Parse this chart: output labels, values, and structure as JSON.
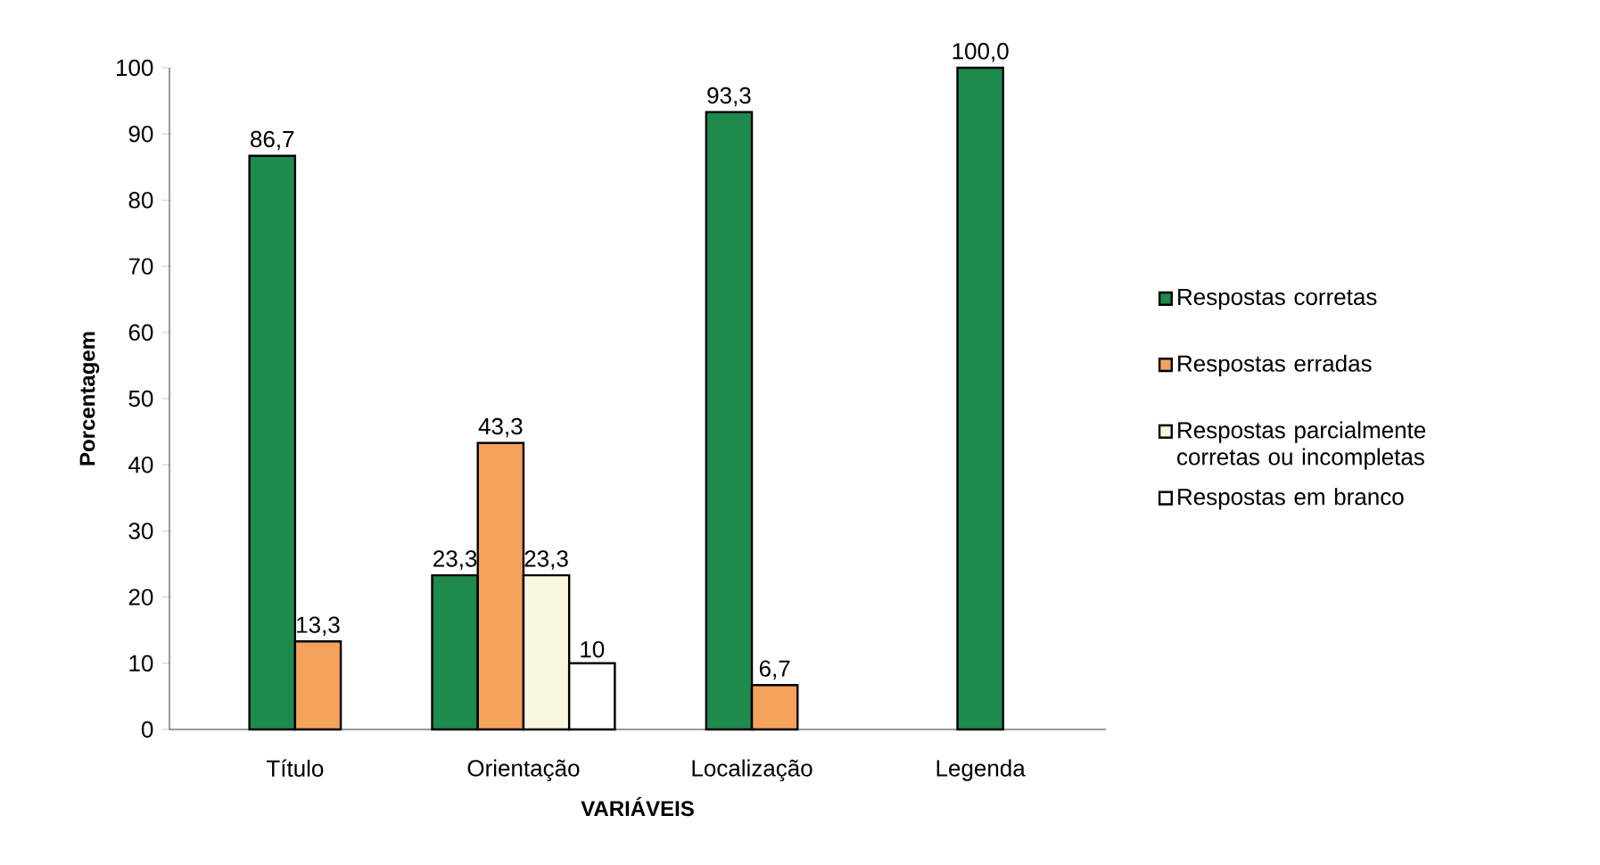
{
  "chart_data": {
    "type": "bar",
    "categories": [
      "Título",
      "Orientação",
      "Localização",
      "Legenda"
    ],
    "xlabel": "VARIÁVEIS",
    "ylabel": "Porcentagem",
    "ylim": [
      0,
      100
    ],
    "yticks": [
      0,
      10,
      20,
      30,
      40,
      50,
      60,
      70,
      80,
      90,
      100
    ],
    "legend": "right",
    "series": [
      {
        "name": "Respostas corretas",
        "color": "#1e8a4c",
        "values": [
          86.7,
          23.3,
          93.3,
          100.0
        ],
        "value_labels": [
          "86,7",
          "23,3",
          "93,3",
          "100,0"
        ]
      },
      {
        "name": "Respostas erradas",
        "color": "#f5a25a",
        "values": [
          13.3,
          43.3,
          6.7,
          null
        ],
        "value_labels": [
          "13,3",
          "43,3",
          "6,7",
          null
        ]
      },
      {
        "name": "Respostas parcialmente corretas ou incompletas",
        "color": "#f8f6dc",
        "values": [
          null,
          23.3,
          null,
          null
        ],
        "value_labels": [
          null,
          "23,3",
          null,
          null
        ]
      },
      {
        "name": "Respostas em branco",
        "color": "#ffffff",
        "values": [
          null,
          10,
          null,
          null
        ],
        "value_labels": [
          null,
          "10",
          null,
          null
        ]
      }
    ]
  }
}
